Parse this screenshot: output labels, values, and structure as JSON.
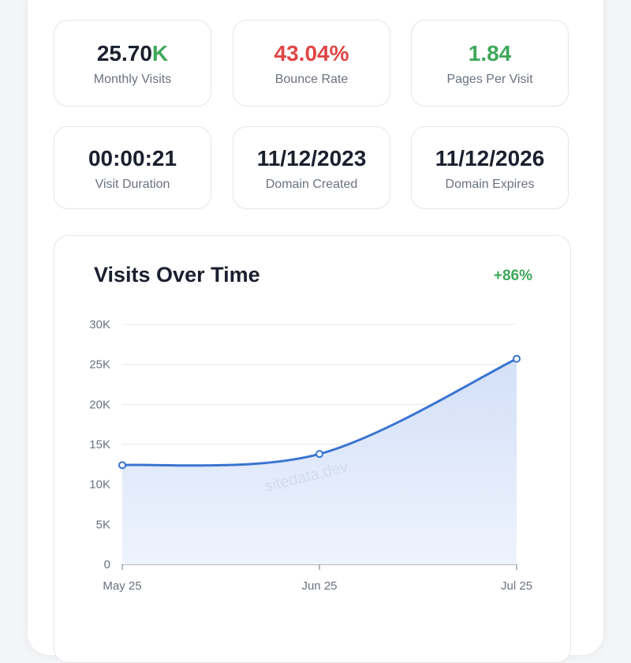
{
  "stats": [
    {
      "value": "25.70",
      "suffix": "K",
      "label": "Monthly Visits",
      "color": "#1b1f2e",
      "suffix_color": "#3fa85a"
    },
    {
      "value": "43.04%",
      "suffix": "",
      "label": "Bounce Rate",
      "color": "#e04646"
    },
    {
      "value": "1.84",
      "suffix": "",
      "label": "Pages Per Visit",
      "color": "#3fa85a"
    },
    {
      "value": "00:00:21",
      "suffix": "",
      "label": "Visit Duration",
      "color": "#1b1f2e"
    },
    {
      "value": "11/12/2023",
      "suffix": "",
      "label": "Domain Created",
      "color": "#1b1f2e"
    },
    {
      "value": "11/12/2026",
      "suffix": "",
      "label": "Domain Expires",
      "color": "#1b1f2e"
    }
  ],
  "chart": {
    "title": "Visits Over Time",
    "change": "+86%",
    "watermark": "sitedata.dev"
  },
  "chart_data": {
    "type": "area",
    "title": "Visits Over Time",
    "categories": [
      "May 25",
      "Jun 25",
      "Jul 25"
    ],
    "values": [
      12400,
      13800,
      25700
    ],
    "ylim": [
      0,
      30000
    ],
    "yticks": [
      0,
      5000,
      10000,
      15000,
      20000,
      25000,
      30000
    ],
    "ytick_labels": [
      "0",
      "5K",
      "10K",
      "15K",
      "20K",
      "25K",
      "30K"
    ],
    "grid": true,
    "line_color": "#3a74d0",
    "fill_color": "#dce7fa"
  }
}
